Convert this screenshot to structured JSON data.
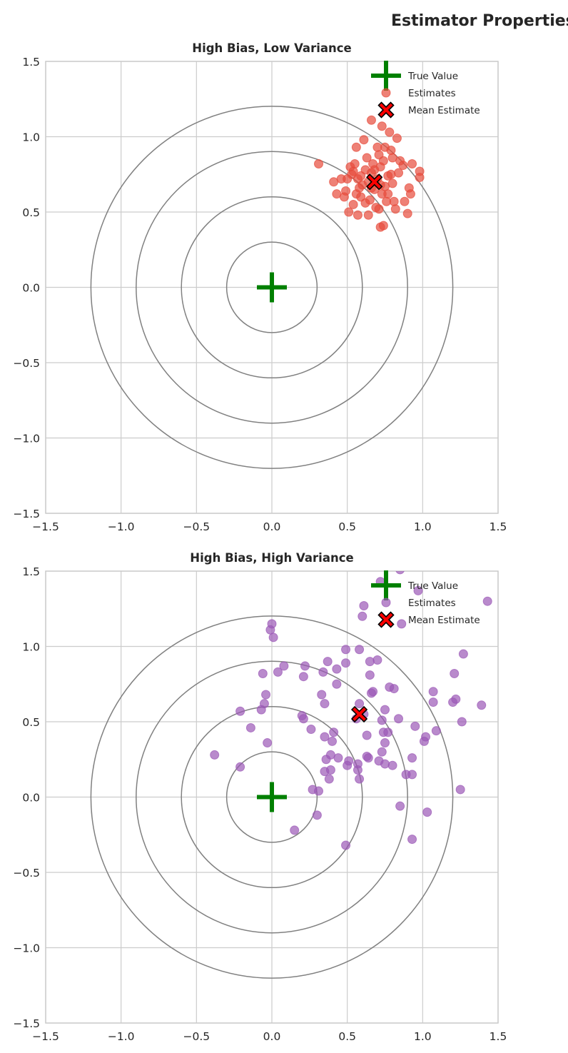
{
  "figure_title": "Estimator Properties",
  "chart_data": [
    {
      "type": "scatter",
      "title": "High Bias, Low Variance",
      "xlim": [
        -1.5,
        1.5
      ],
      "ylim": [
        -1.5,
        1.5
      ],
      "xticks": [
        "−1.5",
        "−1.0",
        "−0.5",
        "0.0",
        "0.5",
        "1.0",
        "1.5"
      ],
      "yticks": [
        "−1.5",
        "−1.0",
        "−0.5",
        "0.0",
        "0.5",
        "1.0",
        "1.5"
      ],
      "grid": true,
      "target_rings": [
        0.3,
        0.6,
        0.9,
        1.2
      ],
      "legend_position": "top-right",
      "legend": [
        "True Value",
        "Estimates",
        "Mean Estimate"
      ],
      "true_value": [
        0,
        0
      ],
      "mean_estimate": [
        0.68,
        0.7
      ],
      "color": "#e74c3c",
      "points": [
        [
          0.31,
          0.82
        ],
        [
          0.41,
          0.7
        ],
        [
          0.43,
          0.62
        ],
        [
          0.46,
          0.72
        ],
        [
          0.48,
          0.6
        ],
        [
          0.49,
          0.64
        ],
        [
          0.51,
          0.5
        ],
        [
          0.52,
          0.8
        ],
        [
          0.53,
          0.75
        ],
        [
          0.54,
          0.77
        ],
        [
          0.55,
          0.82
        ],
        [
          0.56,
          0.62
        ],
        [
          0.56,
          0.93
        ],
        [
          0.57,
          0.48
        ],
        [
          0.58,
          0.66
        ],
        [
          0.59,
          0.6
        ],
        [
          0.59,
          0.74
        ],
        [
          0.61,
          0.98
        ],
        [
          0.62,
          0.78
        ],
        [
          0.63,
          0.86
        ],
        [
          0.64,
          0.48
        ],
        [
          0.64,
          0.7
        ],
        [
          0.65,
          0.58
        ],
        [
          0.66,
          1.11
        ],
        [
          0.66,
          0.76
        ],
        [
          0.67,
          0.82
        ],
        [
          0.68,
          0.65
        ],
        [
          0.69,
          0.53
        ],
        [
          0.7,
          0.93
        ],
        [
          0.7,
          0.72
        ],
        [
          0.71,
          0.88
        ],
        [
          0.71,
          0.52
        ],
        [
          0.72,
          0.4
        ],
        [
          0.72,
          0.8
        ],
        [
          0.73,
          1.07
        ],
        [
          0.73,
          0.62
        ],
        [
          0.74,
          0.41
        ],
        [
          0.74,
          0.84
        ],
        [
          0.75,
          0.93
        ],
        [
          0.75,
          0.67
        ],
        [
          0.76,
          0.57
        ],
        [
          0.77,
          0.74
        ],
        [
          0.78,
          1.03
        ],
        [
          0.79,
          0.91
        ],
        [
          0.8,
          0.69
        ],
        [
          0.81,
          0.57
        ],
        [
          0.82,
          0.52
        ],
        [
          0.83,
          0.99
        ],
        [
          0.84,
          0.76
        ],
        [
          0.85,
          0.84
        ],
        [
          0.87,
          0.81
        ],
        [
          0.88,
          0.57
        ],
        [
          0.9,
          0.49
        ],
        [
          0.91,
          0.66
        ],
        [
          0.92,
          0.62
        ],
        [
          0.93,
          0.82
        ],
        [
          0.98,
          0.77
        ],
        [
          0.98,
          0.73
        ],
        [
          0.6,
          0.68
        ],
        [
          0.62,
          0.56
        ],
        [
          0.66,
          0.66
        ],
        [
          0.68,
          0.78
        ],
        [
          0.72,
          0.68
        ],
        [
          0.77,
          0.62
        ],
        [
          0.79,
          0.75
        ],
        [
          0.8,
          0.86
        ],
        [
          0.5,
          0.72
        ],
        [
          0.54,
          0.55
        ],
        [
          0.57,
          0.72
        ]
      ]
    },
    {
      "type": "scatter",
      "title": "High Bias, High Variance",
      "xlim": [
        -1.5,
        1.5
      ],
      "ylim": [
        -1.5,
        1.5
      ],
      "xticks": [
        "−1.5",
        "−1.0",
        "−0.5",
        "0.0",
        "0.5",
        "1.0",
        "1.5"
      ],
      "yticks": [
        "−1.5",
        "−1.0",
        "−0.5",
        "0.0",
        "0.5",
        "1.0",
        "1.5"
      ],
      "grid": true,
      "target_rings": [
        0.3,
        0.6,
        0.9,
        1.2
      ],
      "legend_position": "top-right",
      "legend": [
        "True Value",
        "Estimates",
        "Mean Estimate"
      ],
      "true_value": [
        0,
        0
      ],
      "mean_estimate": [
        0.58,
        0.55
      ],
      "color": "#9b59b6",
      "points": [
        [
          -0.38,
          0.28
        ],
        [
          -0.21,
          0.2
        ],
        [
          -0.21,
          0.57
        ],
        [
          -0.14,
          0.46
        ],
        [
          -0.07,
          0.58
        ],
        [
          -0.06,
          0.82
        ],
        [
          -0.05,
          0.62
        ],
        [
          -0.04,
          0.68
        ],
        [
          -0.03,
          0.36
        ],
        [
          -0.01,
          1.11
        ],
        [
          0.0,
          1.15
        ],
        [
          0.01,
          1.06
        ],
        [
          0.04,
          0.83
        ],
        [
          0.08,
          0.87
        ],
        [
          0.15,
          -0.22
        ],
        [
          0.2,
          0.54
        ],
        [
          0.21,
          0.52
        ],
        [
          0.21,
          0.8
        ],
        [
          0.22,
          0.87
        ],
        [
          0.26,
          0.45
        ],
        [
          0.27,
          0.05
        ],
        [
          0.3,
          -0.12
        ],
        [
          0.31,
          0.04
        ],
        [
          0.33,
          0.68
        ],
        [
          0.34,
          0.83
        ],
        [
          0.35,
          0.62
        ],
        [
          0.35,
          0.4
        ],
        [
          0.35,
          0.17
        ],
        [
          0.36,
          0.25
        ],
        [
          0.37,
          0.9
        ],
        [
          0.38,
          0.12
        ],
        [
          0.39,
          0.28
        ],
        [
          0.39,
          0.18
        ],
        [
          0.4,
          0.37
        ],
        [
          0.41,
          0.43
        ],
        [
          0.43,
          0.85
        ],
        [
          0.43,
          0.75
        ],
        [
          0.44,
          0.26
        ],
        [
          0.49,
          0.98
        ],
        [
          0.49,
          0.89
        ],
        [
          0.49,
          -0.32
        ],
        [
          0.5,
          0.21
        ],
        [
          0.51,
          0.24
        ],
        [
          0.56,
          0.52
        ],
        [
          0.57,
          0.22
        ],
        [
          0.57,
          0.18
        ],
        [
          0.58,
          0.98
        ],
        [
          0.58,
          0.12
        ],
        [
          0.6,
          1.2
        ],
        [
          0.61,
          1.27
        ],
        [
          0.63,
          0.27
        ],
        [
          0.63,
          0.41
        ],
        [
          0.64,
          0.26
        ],
        [
          0.65,
          0.9
        ],
        [
          0.65,
          0.81
        ],
        [
          0.67,
          0.7
        ],
        [
          0.7,
          0.91
        ],
        [
          0.71,
          0.24
        ],
        [
          0.72,
          1.43
        ],
        [
          0.73,
          0.51
        ],
        [
          0.73,
          0.3
        ],
        [
          0.74,
          0.43
        ],
        [
          0.75,
          0.58
        ],
        [
          0.75,
          0.36
        ],
        [
          0.75,
          0.22
        ],
        [
          0.77,
          0.43
        ],
        [
          0.78,
          0.73
        ],
        [
          0.8,
          0.21
        ],
        [
          0.81,
          0.72
        ],
        [
          0.84,
          0.52
        ],
        [
          0.85,
          -0.06
        ],
        [
          0.85,
          1.51
        ],
        [
          0.86,
          1.15
        ],
        [
          0.89,
          0.15
        ],
        [
          0.93,
          0.15
        ],
        [
          0.93,
          0.26
        ],
        [
          0.93,
          -0.28
        ],
        [
          0.95,
          0.47
        ],
        [
          0.97,
          1.37
        ],
        [
          1.01,
          0.37
        ],
        [
          1.02,
          0.4
        ],
        [
          1.03,
          -0.1
        ],
        [
          1.07,
          0.7
        ],
        [
          1.07,
          0.63
        ],
        [
          1.09,
          0.44
        ],
        [
          1.2,
          0.63
        ],
        [
          1.21,
          0.82
        ],
        [
          1.22,
          0.65
        ],
        [
          1.25,
          0.05
        ],
        [
          1.26,
          0.5
        ],
        [
          1.27,
          0.95
        ],
        [
          1.39,
          0.61
        ],
        [
          1.43,
          1.3
        ],
        [
          0.58,
          0.62
        ],
        [
          0.61,
          0.55
        ],
        [
          0.66,
          0.69
        ]
      ]
    }
  ]
}
